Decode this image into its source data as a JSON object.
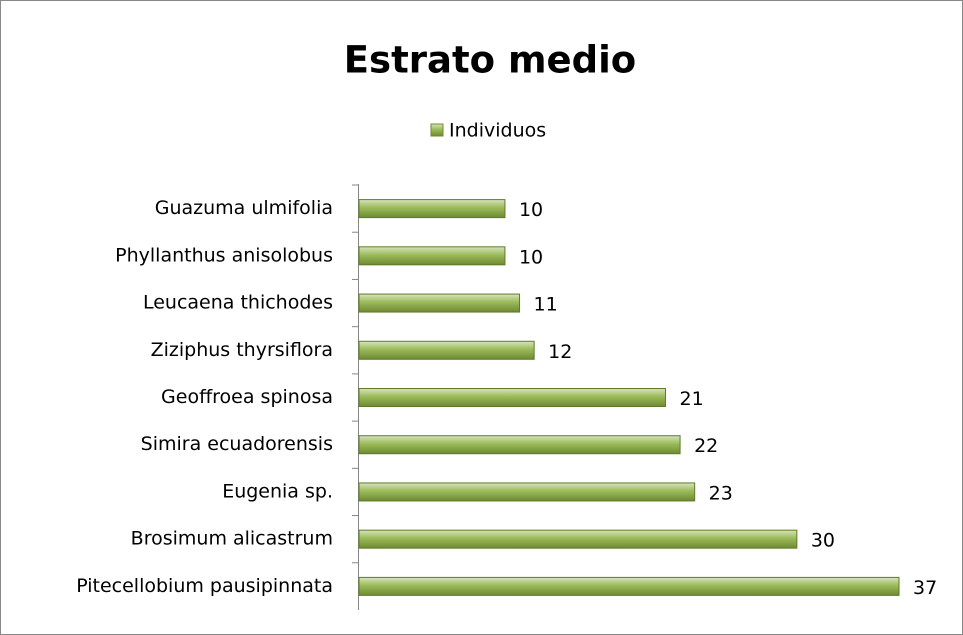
{
  "chart_data": {
    "type": "bar",
    "orientation": "horizontal",
    "title": "Estrato medio",
    "legend": "top",
    "series": [
      {
        "name": "Individuos",
        "color": "#9bbb59",
        "values": [
          10,
          10,
          11,
          12,
          21,
          22,
          23,
          30,
          37
        ]
      }
    ],
    "categories": [
      "Guazuma ulmifolia",
      "Phyllanthus anisolobus",
      "Leucaena thichodes",
      "Ziziphus thyrsiflora",
      "Geoffroea  spinosa",
      "Simira ecuadorensis",
      "Eugenia sp.",
      "Brosimum alicastrum",
      "Pitecellobium pausipinnata"
    ]
  }
}
